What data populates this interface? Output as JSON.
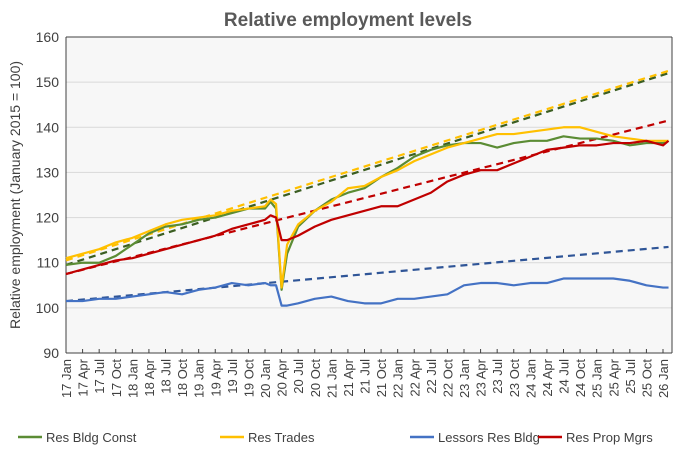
{
  "chart_data": {
    "type": "line",
    "title": "Relative employment levels",
    "ylabel": "Relative employment (January 2015 = 100)",
    "xlabel": "",
    "ylim": [
      90,
      160
    ],
    "yticks": [
      90,
      100,
      110,
      120,
      130,
      140,
      150,
      160
    ],
    "grid": true,
    "legend": "bottom",
    "xtick_labels": [
      "17 Jan",
      "17 Apr",
      "17 Jul",
      "17 Oct",
      "18 Jan",
      "18 Apr",
      "18 Jul",
      "18 Oct",
      "19 Jan",
      "19 Apr",
      "19 Jul",
      "19 Oct",
      "20 Jan",
      "20 Apr",
      "20 Jul",
      "20 Oct",
      "21 Jan",
      "21 Apr",
      "21 Jul",
      "21 Oct",
      "22 Jan",
      "22 Apr",
      "22 Jul",
      "22 Oct",
      "23 Jan",
      "23 Apr",
      "23 Jul",
      "23 Oct",
      "24 Jan",
      "24 Apr",
      "24 Jul",
      "24 Oct",
      "25 Jan",
      "25 Apr",
      "25 Jul",
      "25 Oct",
      "26 Jan"
    ],
    "x": [
      "2017-01",
      "2017-04",
      "2017-07",
      "2017-10",
      "2018-01",
      "2018-04",
      "2018-07",
      "2018-10",
      "2019-01",
      "2019-04",
      "2019-07",
      "2019-10",
      "2020-01",
      "2020-02",
      "2020-03",
      "2020-04",
      "2020-05",
      "2020-07",
      "2020-10",
      "2021-01",
      "2021-04",
      "2021-07",
      "2021-10",
      "2022-01",
      "2022-04",
      "2022-07",
      "2022-10",
      "2023-01",
      "2023-04",
      "2023-07",
      "2023-10",
      "2024-01",
      "2024-04",
      "2024-07",
      "2024-10",
      "2025-01",
      "2025-04",
      "2025-07",
      "2025-10",
      "2026-01",
      "2026-02"
    ],
    "series": [
      {
        "name": "Res Bldg Const",
        "color": "#5b8c34",
        "trend_color": "#3b5e22",
        "trend": [
          109.5,
          152
        ],
        "values": [
          109.5,
          110,
          110,
          111.5,
          114,
          116.5,
          118,
          118.5,
          119.5,
          120,
          121,
          122,
          122,
          123.5,
          122,
          104,
          112,
          118,
          121.5,
          124,
          125.5,
          126.5,
          129,
          131,
          133.5,
          135,
          136,
          136.5,
          136.5,
          135.5,
          136.5,
          137,
          137,
          138,
          137.5,
          137.5,
          137,
          136,
          136.5,
          136.5,
          137
        ]
      },
      {
        "name": "Res Trades",
        "color": "#ffc000",
        "trend_color": "#ffc000",
        "trend": [
          110.5,
          152.5
        ],
        "values": [
          111,
          112,
          113,
          114.5,
          115.5,
          117,
          118.5,
          119.5,
          120,
          120.5,
          121.5,
          122,
          122.5,
          124,
          123,
          104.5,
          114,
          118.5,
          121.5,
          123.5,
          126.5,
          127,
          129,
          130.5,
          132.5,
          134,
          135.5,
          136.5,
          137.5,
          138.5,
          138.5,
          139,
          139.5,
          140,
          140,
          139,
          138,
          137.5,
          137,
          137,
          137
        ]
      },
      {
        "name": "Lessors Res Bldg",
        "color": "#4472c4",
        "trend_color": "#2f5597",
        "trend": [
          101.5,
          113.5
        ],
        "values": [
          101.5,
          101.5,
          102,
          102,
          102.5,
          103,
          103.5,
          103,
          104,
          104.5,
          105.5,
          105,
          105.5,
          105,
          105,
          100.5,
          100.5,
          101,
          102,
          102.5,
          101.5,
          101,
          101,
          102,
          102,
          102.5,
          103,
          105,
          105.5,
          105.5,
          105,
          105.5,
          105.5,
          106.5,
          106.5,
          106.5,
          106.5,
          106,
          105,
          104.5,
          104.5
        ]
      },
      {
        "name": "Res Prop Mgrs",
        "color": "#c00000",
        "trend_color": "#c00000",
        "trend": [
          107.5,
          141.5
        ],
        "values": [
          107.5,
          108.5,
          109.5,
          110.5,
          111,
          112,
          113,
          114,
          115,
          116,
          117.5,
          118.5,
          119.5,
          120.5,
          120,
          115,
          115,
          116,
          118,
          119.5,
          120.5,
          121.5,
          122.5,
          122.5,
          124,
          125.5,
          128,
          129.5,
          130.5,
          130.5,
          132,
          133.5,
          135,
          135.5,
          136,
          136,
          136.5,
          136.5,
          137,
          136,
          137
        ]
      }
    ]
  }
}
